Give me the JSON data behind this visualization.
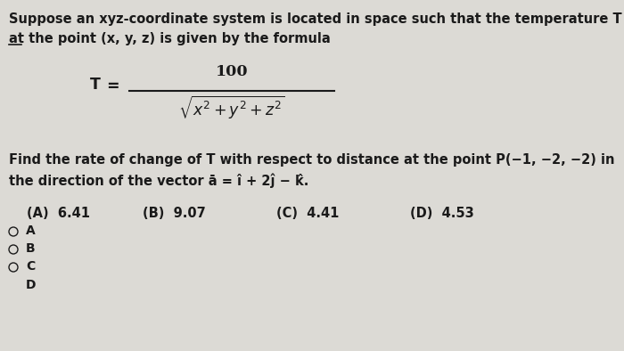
{
  "bg_color": "#dcdad5",
  "text_color": "#1a1a1a",
  "fig_width": 7.0,
  "fig_height": 3.94,
  "line1": "Suppose an xyz-coordinate system is located in space such that the temperature T",
  "line2": "at the point (x, y, z) is given by the formula",
  "line3": "Find the rate of change of T with respect to distance at the point P(−1, −2, −2) in",
  "line4": "the direction of the vector ā = î + 2ĵ − k̂.",
  "answer_A": "(A)  6.41",
  "answer_B": "(B)  9.07",
  "answer_C": "(C)  4.41",
  "answer_D": "(D)  4.53",
  "choice_A": "A",
  "choice_B": "B",
  "choice_C": "C",
  "main_fontsize": 10.5,
  "formula_fontsize": 13
}
